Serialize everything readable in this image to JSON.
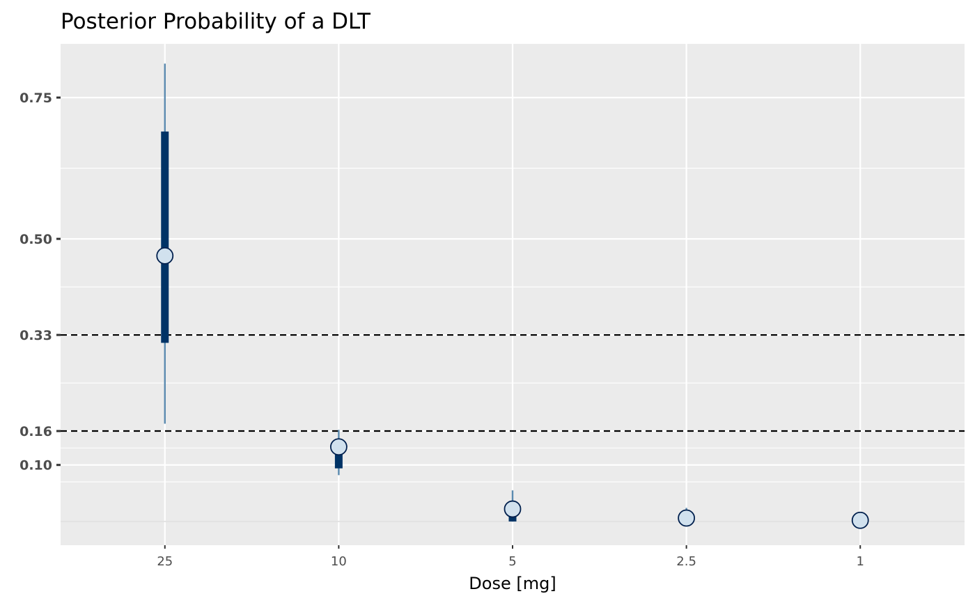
{
  "chart_data": {
    "type": "scatter",
    "title": "Posterior Probability of a DLT",
    "xlabel": "Dose [mg]",
    "ylabel": "",
    "categories": [
      "25",
      "10",
      "5",
      "2.5",
      "1"
    ],
    "y_ticks": [
      0.1,
      0.16,
      0.33,
      0.5,
      0.75
    ],
    "y_tick_labels": [
      "0.10",
      "0.16",
      "0.33",
      "0.50",
      "0.75"
    ],
    "ylim": [
      -0.042,
      0.845
    ],
    "reference_lines": [
      0.16,
      0.33
    ],
    "series": [
      {
        "median": [
          0.47,
          0.132,
          0.022,
          0.006,
          0.002
        ],
        "inner_lower": [
          0.316,
          0.094,
          0.0,
          0.0,
          0.0
        ],
        "inner_upper": [
          0.69,
          0.13,
          0.022,
          0.006,
          0.002
        ],
        "outer_lower": [
          0.173,
          0.082,
          0.0,
          0.0,
          0.0
        ],
        "outer_upper": [
          0.81,
          0.162,
          0.055,
          0.024,
          0.002
        ]
      }
    ],
    "grid": true,
    "legend": "none",
    "colors": {
      "panel": "#ebebeb",
      "grid": "#ffffff",
      "inner_interval": "#003366",
      "outer_interval": "#5b8bb0",
      "point_fill": "#d1e1ee",
      "point_stroke": "#001f4d",
      "reference_line": "#000000"
    }
  }
}
